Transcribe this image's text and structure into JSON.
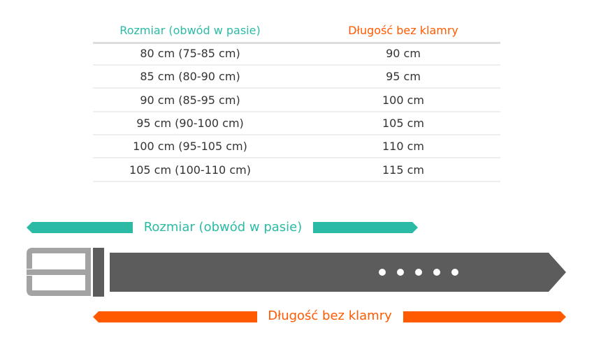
{
  "colors": {
    "size": "#2bbba5",
    "length": "#ff5a00",
    "strap": "#5c5c5c",
    "buckle": "#a3a3a3"
  },
  "table": {
    "headers": [
      "Rozmiar (obwód w pasie)",
      "Długość bez klamry"
    ],
    "rows": [
      [
        "80 cm (75-85 cm)",
        "90 cm"
      ],
      [
        "85 cm (80-90 cm)",
        "95 cm"
      ],
      [
        "90 cm (85-95 cm)",
        "100 cm"
      ],
      [
        "95 cm (90-100 cm)",
        "105 cm"
      ],
      [
        "100 cm (95-105 cm)",
        "110 cm"
      ],
      [
        "105 cm (100-110 cm)",
        "115 cm"
      ]
    ]
  },
  "diagram": {
    "size_label": "Rozmiar (obwód w pasie)",
    "length_label": "Długość bez klamry",
    "belt_holes": 5
  }
}
